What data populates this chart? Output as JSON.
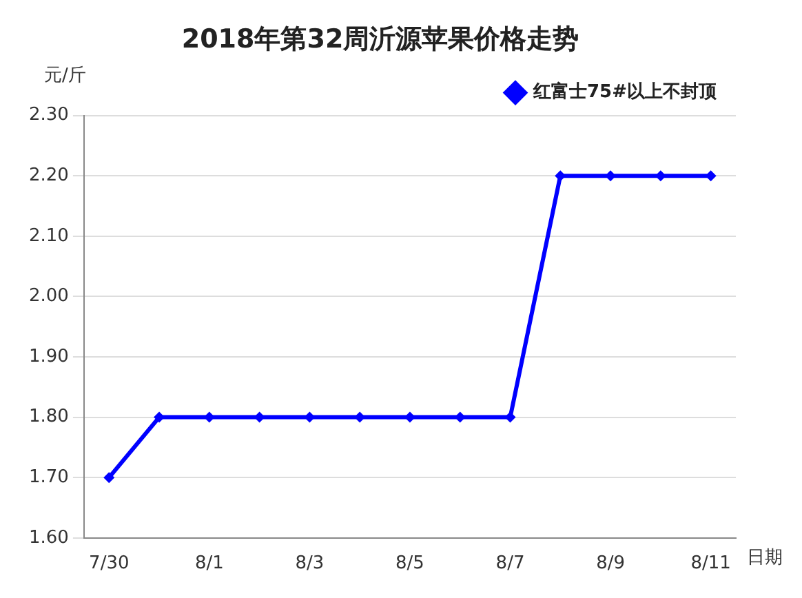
{
  "chart_data": {
    "type": "line",
    "title": "2018年第32周沂源苹果价格走势",
    "ylabel": "元/斤",
    "xlabel": "日期",
    "categories": [
      "7/30",
      null,
      "8/1",
      null,
      "8/3",
      null,
      "8/5",
      null,
      "8/7",
      null,
      "8/9",
      null,
      "8/11"
    ],
    "series": [
      {
        "name": "红富士75#以上不封顶",
        "color": "#0000ff",
        "values": [
          1.7,
          1.8,
          1.8,
          1.8,
          1.8,
          1.8,
          1.8,
          1.8,
          1.8,
          2.2,
          2.2,
          2.2,
          2.2
        ]
      }
    ],
    "ylim": [
      1.6,
      2.3
    ],
    "yticks": [
      {
        "value": 1.6,
        "label": "1.60"
      },
      {
        "value": 1.7,
        "label": "1.70"
      },
      {
        "value": 1.8,
        "label": "1.80"
      },
      {
        "value": 1.9,
        "label": "1.90"
      },
      {
        "value": 2.0,
        "label": "2.00"
      },
      {
        "value": 2.1,
        "label": "2.10"
      },
      {
        "value": 2.2,
        "label": "2.20"
      },
      {
        "value": 2.3,
        "label": "2.30"
      }
    ],
    "grid": "y",
    "legend": "top right",
    "marker": "diamond",
    "line_style": "solid"
  }
}
